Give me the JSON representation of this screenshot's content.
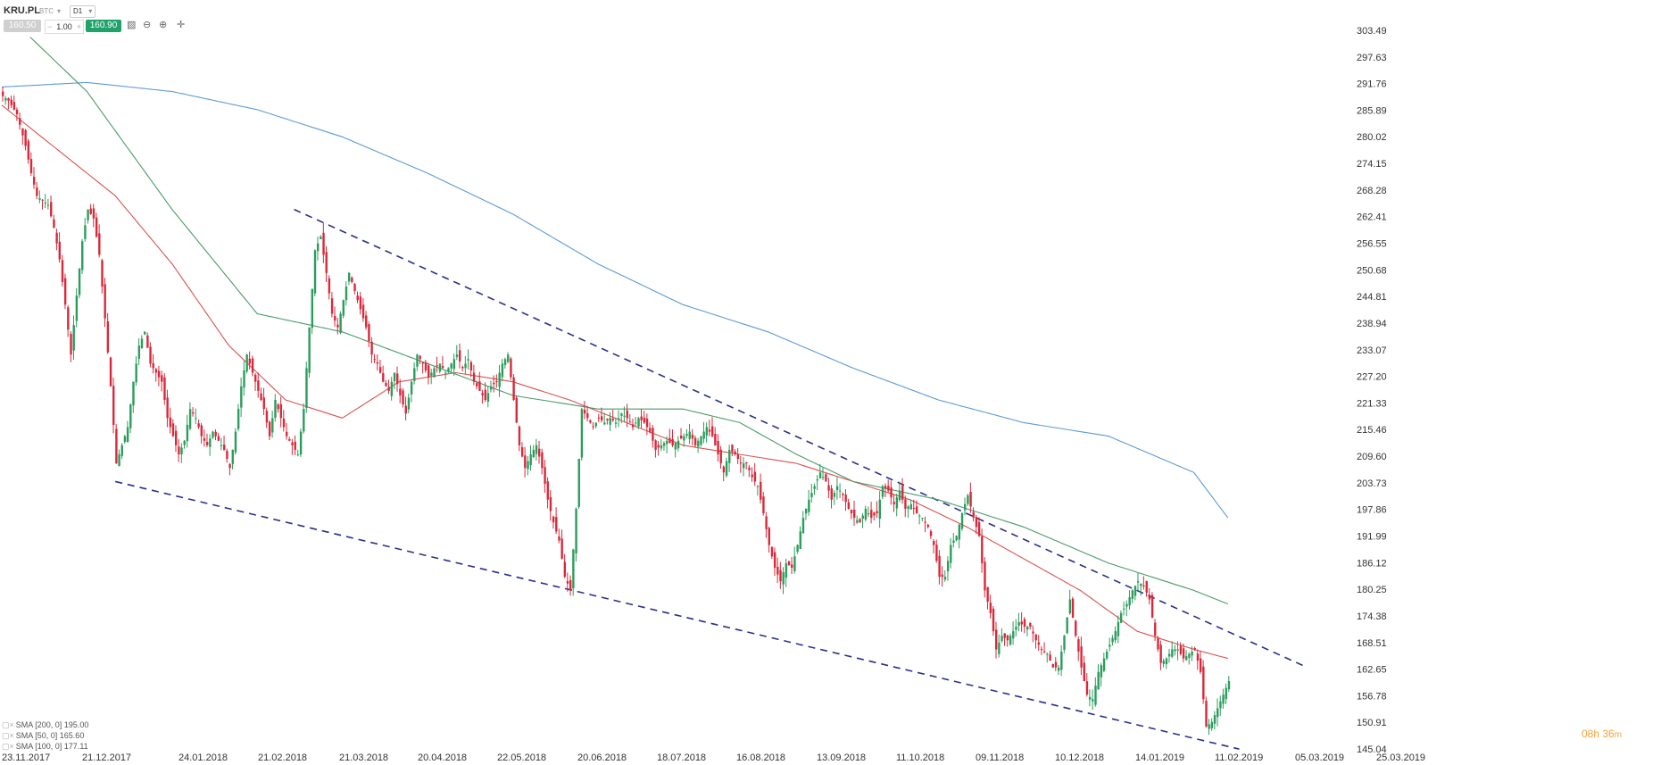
{
  "toolbar": {
    "symbol": "KRU.PL",
    "currency": "BTC",
    "interval": "D1",
    "bid": "160.50",
    "volume": "1.00",
    "ask": "160.90",
    "icons": [
      "candles-icon",
      "zoom-out-icon",
      "zoom-in-icon",
      "crosshair-icon"
    ]
  },
  "timer": {
    "hours": "08h",
    "minutes": "36",
    "unit": "m"
  },
  "legend": [
    {
      "label": "SMA [200, 0] 195.00",
      "color": "#5b9bd5"
    },
    {
      "label": "SMA [50, 0] 165.60",
      "color": "#d9534f"
    },
    {
      "label": "SMA [100, 0] 177.11",
      "color": "#4a9a6a"
    }
  ],
  "chart_data": {
    "type": "candlestick",
    "y_ticks": [
      "303.49",
      "297.63",
      "291.76",
      "285.89",
      "280.02",
      "274.15",
      "268.28",
      "262.41",
      "256.55",
      "250.68",
      "244.81",
      "238.94",
      "233.07",
      "227.20",
      "221.33",
      "215.46",
      "209.60",
      "203.73",
      "197.86",
      "191.99",
      "186.12",
      "180.25",
      "174.38",
      "168.51",
      "162.65",
      "156.78",
      "150.91",
      "145.04"
    ],
    "ylim": [
      145.04,
      303.49
    ],
    "x_ticks": [
      "23.11.2017",
      "21.12.2017",
      "24.01.2018",
      "21.02.2018",
      "21.03.2018",
      "20.04.2018",
      "22.05.2018",
      "20.06.2018",
      "18.07.2018",
      "16.08.2018",
      "13.09.2018",
      "11.10.2018",
      "09.11.2018",
      "10.12.2018",
      "14.01.2019",
      "11.02.2019",
      "05.03.2019",
      "25.03.2019"
    ],
    "colors": {
      "up": "#2a9d5c",
      "down": "#d9283a",
      "sma200": "#5b9bd5",
      "sma50": "#d9534f",
      "sma100": "#4a9a6a",
      "trend": "#2b2f8a"
    },
    "close_path": [
      [
        0,
        289
      ],
      [
        2,
        288
      ],
      [
        5,
        285
      ],
      [
        8,
        278
      ],
      [
        10,
        272
      ],
      [
        12,
        267
      ],
      [
        14,
        266
      ],
      [
        16,
        265
      ],
      [
        18,
        260
      ],
      [
        20,
        253
      ],
      [
        22,
        243
      ],
      [
        24,
        232
      ],
      [
        26,
        245
      ],
      [
        28,
        257
      ],
      [
        30,
        264
      ],
      [
        32,
        262
      ],
      [
        34,
        254
      ],
      [
        36,
        240
      ],
      [
        38,
        225
      ],
      [
        40,
        208
      ],
      [
        42,
        212
      ],
      [
        44,
        216
      ],
      [
        46,
        226
      ],
      [
        48,
        234
      ],
      [
        50,
        237
      ],
      [
        52,
        230
      ],
      [
        54,
        228
      ],
      [
        56,
        226
      ],
      [
        58,
        218
      ],
      [
        60,
        214
      ],
      [
        62,
        210
      ],
      [
        64,
        213
      ],
      [
        66,
        220
      ],
      [
        68,
        218
      ],
      [
        70,
        214
      ],
      [
        72,
        212
      ],
      [
        74,
        215
      ],
      [
        76,
        213
      ],
      [
        78,
        211
      ],
      [
        80,
        207
      ],
      [
        82,
        215
      ],
      [
        84,
        225
      ],
      [
        86,
        232
      ],
      [
        88,
        228
      ],
      [
        90,
        224
      ],
      [
        92,
        220
      ],
      [
        94,
        214
      ],
      [
        96,
        222
      ],
      [
        98,
        218
      ],
      [
        100,
        214
      ],
      [
        102,
        212
      ],
      [
        104,
        210
      ],
      [
        106,
        220
      ],
      [
        108,
        238
      ],
      [
        110,
        255
      ],
      [
        112,
        258
      ],
      [
        114,
        250
      ],
      [
        116,
        241
      ],
      [
        118,
        238
      ],
      [
        120,
        244
      ],
      [
        122,
        250
      ],
      [
        124,
        246
      ],
      [
        126,
        242
      ],
      [
        128,
        238
      ],
      [
        130,
        232
      ],
      [
        132,
        230
      ],
      [
        134,
        226
      ],
      [
        136,
        224
      ],
      [
        138,
        228
      ],
      [
        140,
        223
      ],
      [
        142,
        219
      ],
      [
        144,
        226
      ],
      [
        146,
        232
      ],
      [
        148,
        230
      ],
      [
        150,
        227
      ],
      [
        152,
        229
      ],
      [
        154,
        230
      ],
      [
        156,
        228
      ],
      [
        158,
        230
      ],
      [
        160,
        232
      ],
      [
        162,
        229
      ],
      [
        164,
        231
      ],
      [
        166,
        226
      ],
      [
        168,
        224
      ],
      [
        170,
        222
      ],
      [
        172,
        225
      ],
      [
        174,
        226
      ],
      [
        176,
        230
      ],
      [
        178,
        232
      ],
      [
        180,
        222
      ],
      [
        182,
        212
      ],
      [
        184,
        207
      ],
      [
        186,
        210
      ],
      [
        188,
        212
      ],
      [
        190,
        207
      ],
      [
        192,
        200
      ],
      [
        194,
        195
      ],
      [
        196,
        191
      ],
      [
        198,
        183
      ],
      [
        200,
        180
      ],
      [
        202,
        198
      ],
      [
        204,
        220
      ],
      [
        206,
        218
      ],
      [
        208,
        216
      ],
      [
        210,
        218
      ],
      [
        212,
        217
      ],
      [
        214,
        218
      ],
      [
        216,
        217
      ],
      [
        218,
        219
      ],
      [
        220,
        218
      ],
      [
        222,
        216
      ],
      [
        224,
        218
      ],
      [
        226,
        217
      ],
      [
        228,
        215
      ],
      [
        230,
        211
      ],
      [
        232,
        212
      ],
      [
        234,
        213
      ],
      [
        236,
        212
      ],
      [
        238,
        213
      ],
      [
        240,
        214
      ],
      [
        242,
        215
      ],
      [
        244,
        212
      ],
      [
        246,
        214
      ],
      [
        248,
        216
      ],
      [
        250,
        214
      ],
      [
        252,
        210
      ],
      [
        254,
        206
      ],
      [
        256,
        211
      ],
      [
        258,
        210
      ],
      [
        260,
        208
      ],
      [
        262,
        208
      ],
      [
        264,
        205
      ],
      [
        266,
        203
      ],
      [
        268,
        197
      ],
      [
        270,
        190
      ],
      [
        272,
        185
      ],
      [
        274,
        182
      ],
      [
        276,
        186
      ],
      [
        278,
        185
      ],
      [
        280,
        190
      ],
      [
        282,
        196
      ],
      [
        284,
        200
      ],
      [
        286,
        203
      ],
      [
        288,
        206
      ],
      [
        290,
        204
      ],
      [
        292,
        200
      ],
      [
        294,
        203
      ],
      [
        296,
        201
      ],
      [
        298,
        198
      ],
      [
        300,
        196
      ],
      [
        302,
        195
      ],
      [
        304,
        198
      ],
      [
        306,
        196
      ],
      [
        308,
        197
      ],
      [
        310,
        203
      ],
      [
        312,
        202
      ],
      [
        314,
        199
      ],
      [
        316,
        202
      ],
      [
        318,
        198
      ],
      [
        320,
        199
      ],
      [
        322,
        197
      ],
      [
        324,
        196
      ],
      [
        326,
        194
      ],
      [
        328,
        190
      ],
      [
        330,
        183
      ],
      [
        332,
        183
      ],
      [
        334,
        190
      ],
      [
        336,
        192
      ],
      [
        338,
        197
      ],
      [
        340,
        201
      ],
      [
        342,
        196
      ],
      [
        344,
        192
      ],
      [
        346,
        180
      ],
      [
        348,
        175
      ],
      [
        350,
        167
      ],
      [
        352,
        170
      ],
      [
        354,
        169
      ],
      [
        356,
        171
      ],
      [
        358,
        173
      ],
      [
        360,
        172
      ],
      [
        362,
        172
      ],
      [
        364,
        169
      ],
      [
        366,
        167
      ],
      [
        368,
        166
      ],
      [
        370,
        163
      ],
      [
        372,
        163
      ],
      [
        374,
        170
      ],
      [
        376,
        178
      ],
      [
        378,
        170
      ],
      [
        380,
        163
      ],
      [
        382,
        157
      ],
      [
        384,
        156
      ],
      [
        386,
        162
      ],
      [
        388,
        165
      ],
      [
        390,
        168
      ],
      [
        392,
        171
      ],
      [
        394,
        175
      ],
      [
        396,
        177
      ],
      [
        398,
        180
      ],
      [
        400,
        182
      ],
      [
        402,
        181
      ],
      [
        404,
        178
      ],
      [
        406,
        170
      ],
      [
        408,
        164
      ],
      [
        410,
        165
      ],
      [
        412,
        167
      ],
      [
        414,
        167
      ],
      [
        416,
        165
      ],
      [
        418,
        166
      ],
      [
        420,
        167
      ],
      [
        422,
        162
      ],
      [
        424,
        150
      ],
      [
        426,
        151
      ],
      [
        428,
        154
      ],
      [
        430,
        157
      ],
      [
        432,
        160
      ]
    ],
    "sma200": [
      [
        0,
        291
      ],
      [
        30,
        292
      ],
      [
        60,
        290
      ],
      [
        90,
        286
      ],
      [
        120,
        280
      ],
      [
        150,
        272
      ],
      [
        180,
        263
      ],
      [
        210,
        252
      ],
      [
        240,
        243
      ],
      [
        270,
        237
      ],
      [
        300,
        229
      ],
      [
        330,
        222
      ],
      [
        360,
        217
      ],
      [
        390,
        214
      ],
      [
        420,
        206
      ],
      [
        432,
        196
      ]
    ],
    "sma50": [
      [
        0,
        287
      ],
      [
        20,
        277
      ],
      [
        40,
        267
      ],
      [
        60,
        252
      ],
      [
        80,
        234
      ],
      [
        100,
        222
      ],
      [
        120,
        218
      ],
      [
        140,
        226
      ],
      [
        160,
        228
      ],
      [
        180,
        226
      ],
      [
        200,
        222
      ],
      [
        220,
        217
      ],
      [
        240,
        212
      ],
      [
        260,
        210
      ],
      [
        280,
        208
      ],
      [
        300,
        204
      ],
      [
        320,
        200
      ],
      [
        340,
        194
      ],
      [
        360,
        187
      ],
      [
        380,
        180
      ],
      [
        400,
        171
      ],
      [
        420,
        167
      ],
      [
        432,
        165
      ]
    ],
    "sma100": [
      [
        10,
        302
      ],
      [
        30,
        290
      ],
      [
        60,
        264
      ],
      [
        90,
        241
      ],
      [
        120,
        237
      ],
      [
        150,
        230
      ],
      [
        180,
        223
      ],
      [
        210,
        220
      ],
      [
        240,
        220
      ],
      [
        260,
        217
      ],
      [
        280,
        210
      ],
      [
        300,
        204
      ],
      [
        330,
        200
      ],
      [
        360,
        194
      ],
      [
        390,
        186
      ],
      [
        420,
        180
      ],
      [
        432,
        177
      ]
    ],
    "trendlines": [
      {
        "from": [
          40,
          204
        ],
        "to": [
          436,
          145
        ]
      },
      {
        "from": [
          103,
          264
        ],
        "to": [
          460,
          163
        ]
      }
    ]
  }
}
